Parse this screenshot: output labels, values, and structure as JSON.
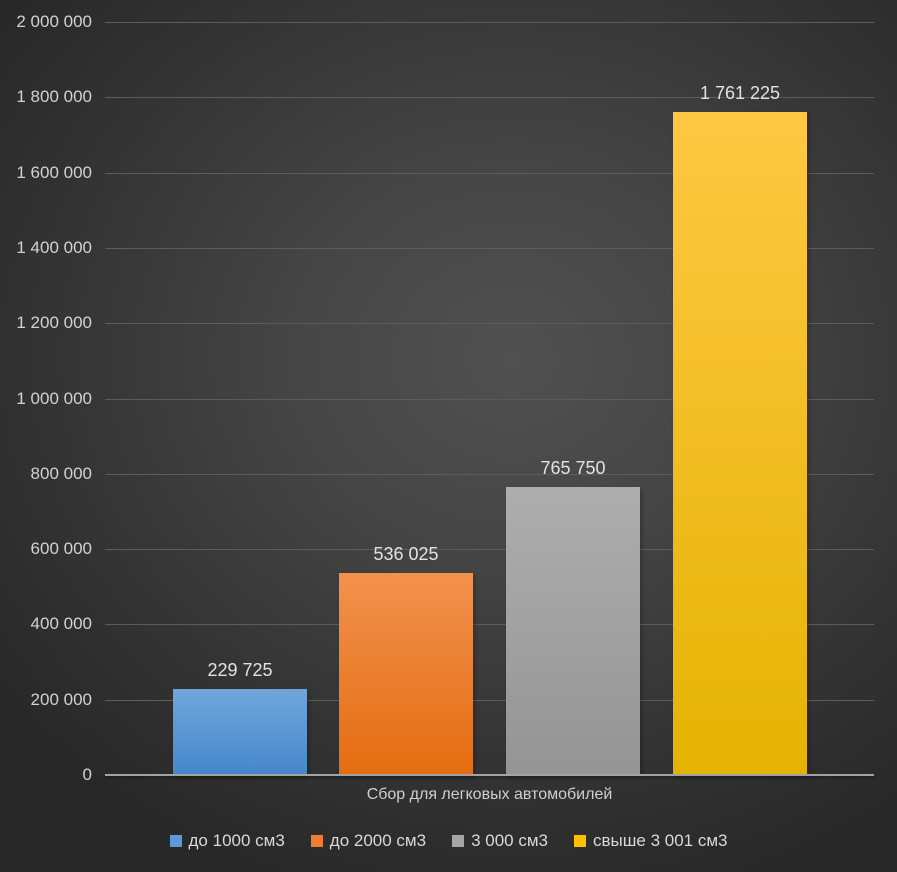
{
  "chart_data": {
    "type": "bar",
    "title": "",
    "xlabel": "Сбор для легковых автомобилей",
    "ylabel": "",
    "categories": [
      "до 1000 см3",
      "до 2000 см3",
      "3 000 см3",
      "свыше 3 001 см3"
    ],
    "values": [
      229725,
      536025,
      765750,
      1761225
    ],
    "value_labels": [
      "229 725",
      "536 025",
      "765 750",
      "1 761 225"
    ],
    "ylim": [
      0,
      2000000
    ],
    "ytick_step": 200000,
    "yticks": [
      "2 000 000",
      "1 800 000",
      "1 600 000",
      "1 400 000",
      "1 200 000",
      "1 000 000",
      "800 000",
      "600 000",
      "400 000",
      "200 000",
      "0"
    ],
    "grid": true,
    "legend_position": "bottom",
    "series_colors": [
      {
        "name": "до 1000 см3",
        "swatch": "#5b9bd5",
        "gradient_top": "#71a6dc",
        "gradient_bottom": "#4587cb"
      },
      {
        "name": "до 2000 см3",
        "swatch": "#ed7d31",
        "gradient_top": "#f2914e",
        "gradient_bottom": "#e46d10"
      },
      {
        "name": "3 000 см3",
        "swatch": "#a5a5a5",
        "gradient_top": "#aeaeae",
        "gradient_bottom": "#949494"
      },
      {
        "name": "свыше 3 001 см3",
        "swatch": "#ffc000",
        "gradient_top": "#ffc843",
        "gradient_bottom": "#e4b302"
      }
    ]
  },
  "colors": {
    "background_center": "#515151",
    "background_edge": "#282828",
    "gridline": "#5c5c5c",
    "axis_line": "#a2a2a2",
    "tick_text": "#d2d2d2",
    "value_text": "#e2e2e2",
    "legend_text": "#d9d9d9"
  }
}
